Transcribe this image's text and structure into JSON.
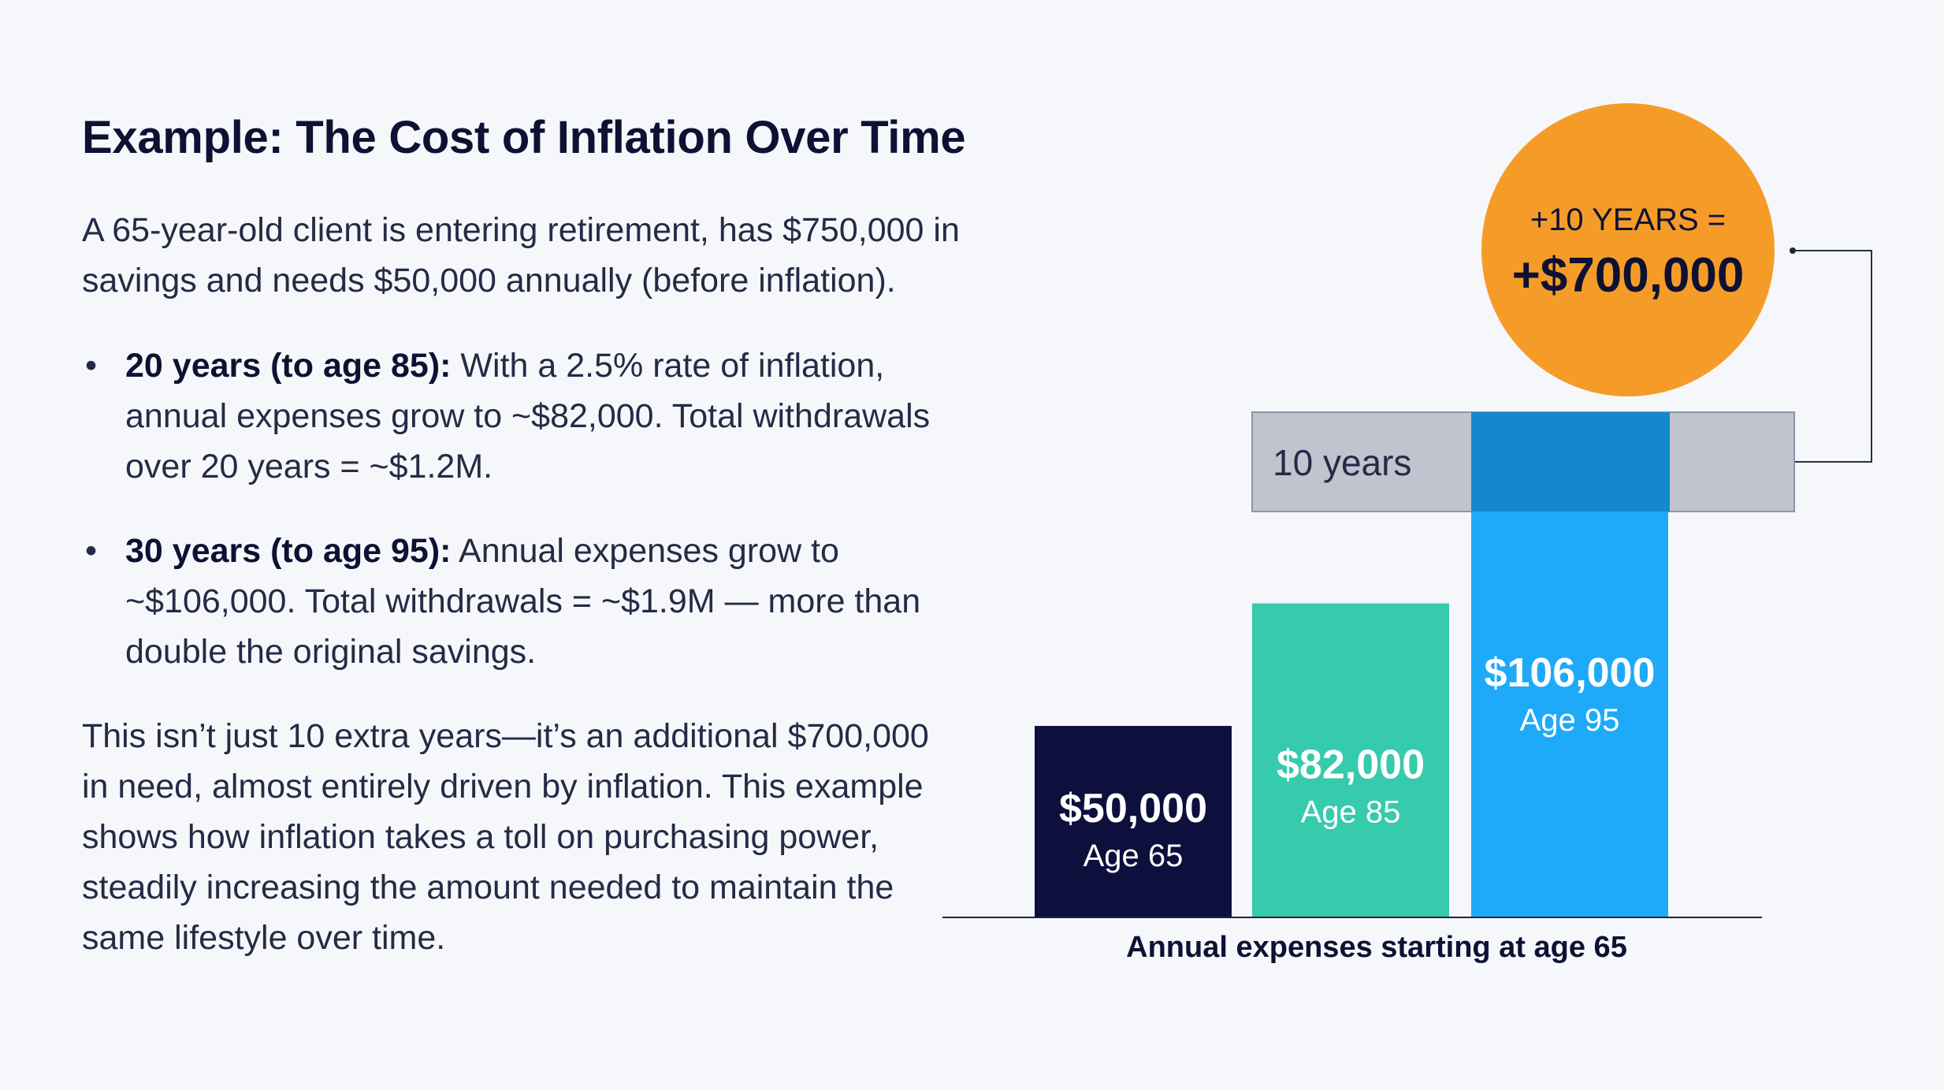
{
  "title": "Example: The Cost of Inflation Over Time",
  "intro": "A 65-year-old client is entering retirement, has $750,000 in savings and needs $50,000 annually (before inflation).",
  "bullets": [
    {
      "bold": "20 years (to age 85):",
      "text": " With a 2.5% rate of inflation, annual expenses grow to ~$82,000. Total withdrawals over 20 years = ~$1.2M."
    },
    {
      "bold": "30 years (to age 95):",
      "text": " Annual expenses grow to ~$106,000. Total withdrawals = ~$1.9M — more than double the original savings."
    }
  ],
  "closing": "This isn’t just 10 extra years—it’s an additional $700,000 in need, almost entirely driven by inflation. This example shows how inflation takes a toll on purchasing power, steadily increasing the amount needed to maintain the same lifestyle over time.",
  "chart_data": {
    "type": "bar",
    "xlabel": "Annual expenses starting at age 65",
    "categories": [
      "Age 65",
      "Age 85",
      "Age 95"
    ],
    "values": [
      50000,
      82000,
      106000
    ],
    "value_labels": [
      "$50,000",
      "$82,000",
      "$106,000"
    ],
    "ylim": [
      0,
      106000
    ],
    "colors": [
      "#0d0f3c",
      "#36cbad",
      "#1eaaf8"
    ],
    "band": {
      "label": "10 years",
      "color": "#bfc4cf",
      "highlight_color": "#1587d0"
    },
    "callout": {
      "top": "+10 YEARS =",
      "value": "+$700,000",
      "color": "#f59c28"
    },
    "grid": false
  }
}
